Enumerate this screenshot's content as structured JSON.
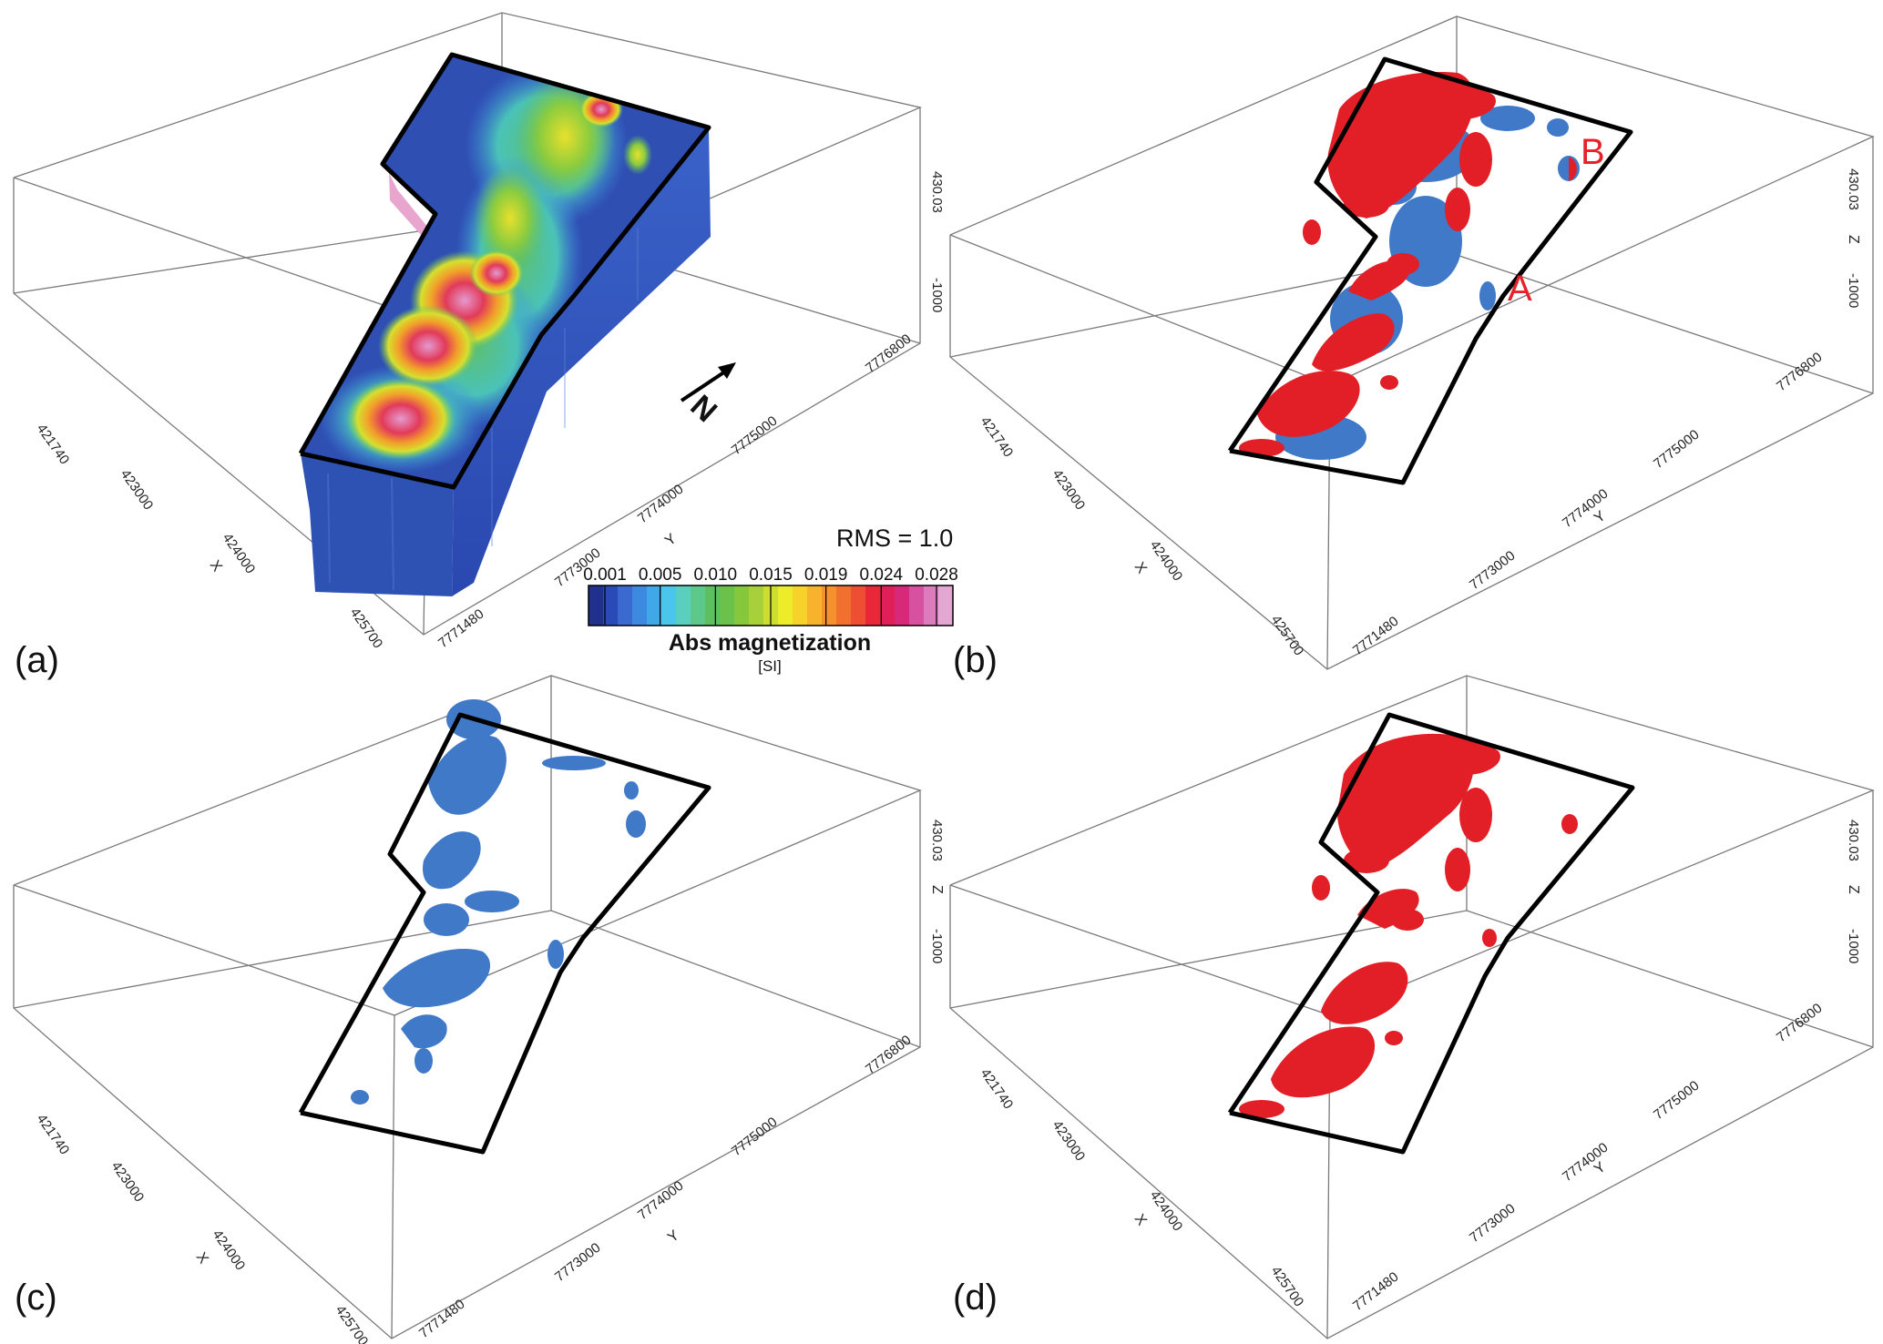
{
  "panels": [
    {
      "id": "a",
      "label": "(a)"
    },
    {
      "id": "b",
      "label": "(b)"
    },
    {
      "id": "c",
      "label": "(c)"
    },
    {
      "id": "d",
      "label": "(d)"
    }
  ],
  "axes": {
    "x_name": "X",
    "y_name": "Y",
    "z_name": "Z",
    "x_ticks": [
      "421740",
      "423000",
      "424000",
      "425700"
    ],
    "y_ticks": [
      "7771480",
      "7773000",
      "7774000",
      "7775000",
      "7776800"
    ],
    "z_ticks": [
      "430.03",
      "-1000"
    ]
  },
  "rms_label": "RMS = 1.0",
  "colorbar": {
    "title": "Abs magnetization",
    "unit": "[SI]",
    "tick_labels": [
      "0.001",
      "0.005",
      "0.010",
      "0.015",
      "0.019",
      "0.024",
      "0.028"
    ],
    "colors": [
      "#20308c",
      "#2a4ab8",
      "#3a6ad0",
      "#3c8ae0",
      "#40a8e8",
      "#4ac6ec",
      "#5acfbf",
      "#5cc88a",
      "#5cc060",
      "#6ac24a",
      "#86c83c",
      "#a8d03a",
      "#cede30",
      "#ecec2a",
      "#f6d22a",
      "#f8b22c",
      "#f6922e",
      "#f2702e",
      "#ee4e32",
      "#e82838",
      "#e01e58",
      "#d8287a",
      "#d850a0",
      "#dc7cbc",
      "#e2a8d2"
    ],
    "range": [
      0.001,
      0.028
    ]
  },
  "north_label": "N",
  "markers": [
    {
      "panel": "b",
      "label": "A"
    },
    {
      "panel": "b",
      "label": "B"
    }
  ],
  "colors": {
    "positive_isosurface": "#e21f26",
    "negative_isosurface": "#3f79c8",
    "outline": "#000000",
    "box_line": "#777777"
  }
}
